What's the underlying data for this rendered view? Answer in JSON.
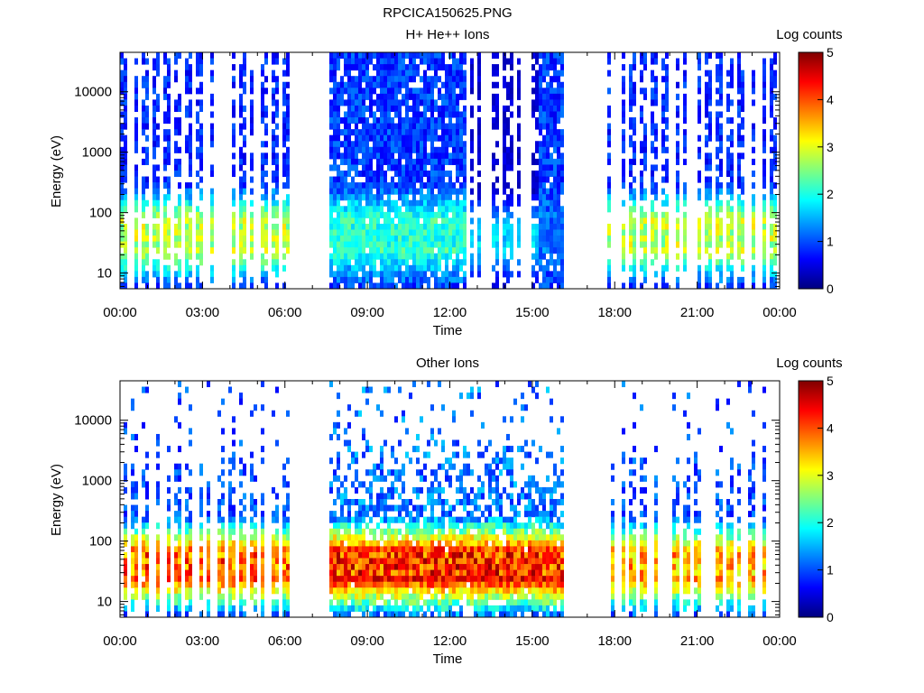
{
  "figure_title": "RPCICA150625.PNG",
  "colors": {
    "colormap": [
      "#00007f",
      "#0000ff",
      "#007fff",
      "#00ffff",
      "#7fff7f",
      "#ffff00",
      "#ff7f00",
      "#ff0000",
      "#7f0000"
    ],
    "axes": "#000000",
    "background": "#ffffff"
  },
  "chart_data": [
    {
      "type": "heatmap",
      "title": "H+ He++ Ions",
      "xlabel": "Time",
      "ylabel": "Energy (eV)",
      "x_ticks": [
        "00:00",
        "03:00",
        "06:00",
        "09:00",
        "12:00",
        "15:00",
        "18:00",
        "21:00",
        "00:00"
      ],
      "x_range_hours": [
        0,
        24
      ],
      "y_scale": "log",
      "y_ticks": [
        "10",
        "100",
        "1000",
        "10000"
      ],
      "y_range_eV": [
        5.5,
        45000
      ],
      "colorbar": {
        "label": "Log counts",
        "ticks": [
          "0",
          "1",
          "2",
          "3",
          "4",
          "5"
        ],
        "range": [
          0,
          5
        ]
      },
      "data_gaps_hours": [
        [
          6.1,
          7.5
        ],
        [
          16.1,
          17.6
        ]
      ],
      "intervals": [
        {
          "start_hours": 0.0,
          "end_hours": 6.1,
          "pattern": "intermittent stripes",
          "peak_energy_eV": [
            25,
            70
          ],
          "peak_log_counts": 3.0,
          "background_log_counts": 0.8
        },
        {
          "start_hours": 7.5,
          "end_hours": 12.5,
          "pattern": "continuous",
          "peak_energy_eV": [
            25,
            70
          ],
          "peak_log_counts": 2.2,
          "background_log_counts": 0.9
        },
        {
          "start_hours": 12.5,
          "end_hours": 15.2,
          "pattern": "sparse",
          "peak_energy_eV": [
            25,
            50
          ],
          "peak_log_counts": 1.8,
          "background_log_counts": 0.4
        },
        {
          "start_hours": 15.2,
          "end_hours": 16.1,
          "pattern": "continuous",
          "peak_energy_eV": [
            25,
            70
          ],
          "peak_log_counts": 1.2,
          "background_log_counts": 0.9
        },
        {
          "start_hours": 17.6,
          "end_hours": 24.0,
          "pattern": "intermittent stripes",
          "peak_energy_eV": [
            25,
            70
          ],
          "peak_log_counts": 3.0,
          "background_log_counts": 0.8
        }
      ]
    },
    {
      "type": "heatmap",
      "title": "Other Ions",
      "xlabel": "Time",
      "ylabel": "Energy (eV)",
      "x_ticks": [
        "00:00",
        "03:00",
        "06:00",
        "09:00",
        "12:00",
        "15:00",
        "18:00",
        "21:00",
        "00:00"
      ],
      "x_range_hours": [
        0,
        24
      ],
      "y_scale": "log",
      "y_ticks": [
        "10",
        "100",
        "1000",
        "10000"
      ],
      "y_range_eV": [
        5.5,
        45000
      ],
      "colorbar": {
        "label": "Log counts",
        "ticks": [
          "0",
          "1",
          "2",
          "3",
          "4",
          "5"
        ],
        "range": [
          0,
          5
        ]
      },
      "data_gaps_hours": [
        [
          6.1,
          7.5
        ],
        [
          16.1,
          17.6
        ]
      ],
      "intervals": [
        {
          "start_hours": 0.0,
          "end_hours": 6.1,
          "pattern": "intermittent stripes",
          "peak_energy_eV": [
            25,
            60
          ],
          "peak_log_counts": 4.2,
          "background_log_counts": 1.0
        },
        {
          "start_hours": 7.5,
          "end_hours": 16.1,
          "pattern": "continuous",
          "peak_energy_eV": [
            25,
            60
          ],
          "peak_log_counts": 4.5,
          "background_log_counts": 1.2
        },
        {
          "start_hours": 17.6,
          "end_hours": 24.0,
          "pattern": "intermittent stripes",
          "peak_energy_eV": [
            25,
            60
          ],
          "peak_log_counts": 3.8,
          "background_log_counts": 1.0
        }
      ]
    }
  ]
}
